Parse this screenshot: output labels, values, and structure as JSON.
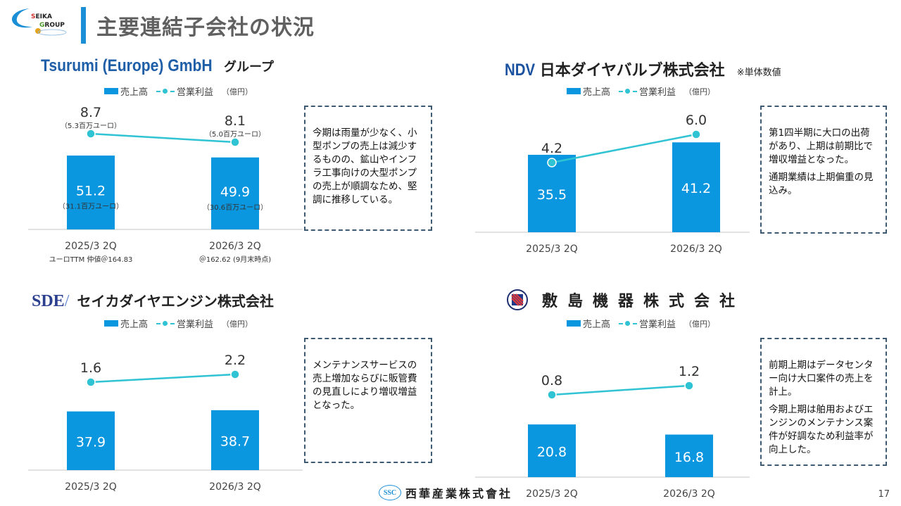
{
  "header": {
    "logo_text_line1": "SEIKA",
    "logo_text_line2": "GROUP",
    "title": "主要連結子会社の状況"
  },
  "legend": {
    "sales_label": "売上高",
    "profit_label": "営業利益",
    "unit": "（億円）"
  },
  "colors": {
    "bar": "#0a97df",
    "line": "#2fc3d3",
    "title_accent": "#1b8fd6",
    "comment_border": "#3e5a72"
  },
  "companies": [
    {
      "name_en": "Tsurumi (Europe) GmbH",
      "name_jp": "グループ",
      "comment": [
        "今期は雨量が少なく、小型ポンプの売上は減少するものの、鉱山やインフラ工事向けの大型ポンプの売上が順調なため、堅調に推移している。"
      ],
      "xsub": [
        "ユーロTTM 仲値＠164.83",
        "＠162.62 (9月末時点)"
      ]
    },
    {
      "name_en": "NDV",
      "name_jp": "日本ダイヤバルブ株式会社",
      "note": "※単体数値",
      "comment": [
        "第1四半期に大口の出荷があり、上期は前期比で増収増益となった。",
        "通期業績は上期偏重の見込み。"
      ]
    },
    {
      "name_en": "SDE",
      "name_jp": "セイカダイヤエンジン株式会社",
      "comment": [
        "メンテナンスサービスの売上増加ならびに販管費の見直しにより増収増益となった。"
      ]
    },
    {
      "name_jp": "敷島機器株式会社",
      "comment": [
        "前期上期はデータセンター向け大口案件の売上を計上。",
        "今期上期は舶用およびエンジンのメンテナンス案件が好調なため利益率が向上した。"
      ]
    }
  ],
  "chart_data": [
    {
      "type": "bar",
      "title": "Tsurumi (Europe) GmbH グループ",
      "categories": [
        "2025/3 2Q",
        "2026/3 2Q"
      ],
      "series": [
        {
          "name": "売上高",
          "type": "bar",
          "values": [
            51.2,
            49.9
          ],
          "sublabels": [
            "（31.1百万ユーロ）",
            "（30.6百万ユーロ）"
          ]
        },
        {
          "name": "営業利益",
          "type": "line",
          "values": [
            8.7,
            8.1
          ],
          "sublabels": [
            "（5.3百万ユーロ）",
            "（5.0百万ユーロ）"
          ]
        }
      ],
      "ylabel": "億円"
    },
    {
      "type": "bar",
      "title": "NDV 日本ダイヤバルブ株式会社",
      "categories": [
        "2025/3 2Q",
        "2026/3 2Q"
      ],
      "series": [
        {
          "name": "売上高",
          "type": "bar",
          "values": [
            35.5,
            41.2
          ]
        },
        {
          "name": "営業利益",
          "type": "line",
          "values": [
            4.2,
            6.0
          ]
        }
      ],
      "ylabel": "億円"
    },
    {
      "type": "bar",
      "title": "SDE セイカダイヤエンジン株式会社",
      "categories": [
        "2025/3 2Q",
        "2026/3 2Q"
      ],
      "series": [
        {
          "name": "売上高",
          "type": "bar",
          "values": [
            37.9,
            38.7
          ]
        },
        {
          "name": "営業利益",
          "type": "line",
          "values": [
            1.6,
            2.2
          ]
        }
      ],
      "ylabel": "億円"
    },
    {
      "type": "bar",
      "title": "敷島機器株式会社",
      "categories": [
        "2025/3 2Q",
        "2026/3 2Q"
      ],
      "series": [
        {
          "name": "売上高",
          "type": "bar",
          "values": [
            20.8,
            16.8
          ]
        },
        {
          "name": "営業利益",
          "type": "line",
          "values": [
            0.8,
            1.2
          ]
        }
      ],
      "ylabel": "億円"
    }
  ],
  "footer": {
    "logo_mark": "SSC",
    "company": "西華産業株式會社",
    "page": "17"
  }
}
